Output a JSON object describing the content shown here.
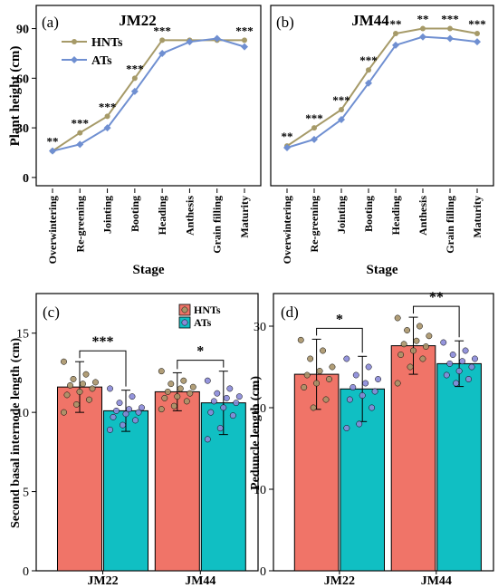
{
  "figure": {
    "colors": {
      "hnt": "#a69a68",
      "at": "#6f8fd1",
      "bar_hnt": "#f07468",
      "bar_at": "#10bfc3",
      "pt_hnt": "#a89469",
      "pt_at": "#8a8ad8"
    }
  },
  "chart_data": [
    {
      "type": "line",
      "panel": "(a)",
      "title": "JM22",
      "xlabel": "Stage",
      "ylabel": "Plant height (cm)",
      "ylim": [
        -5,
        104
      ],
      "yticks": [
        "0",
        "30",
        "60",
        "90"
      ],
      "categories": [
        "Overwintering",
        "Re-greening",
        "Jointing",
        "Booting",
        "Heading",
        "Anthesis",
        "Grain filling",
        "Maturity"
      ],
      "legend": {
        "position": "top-left",
        "entries": [
          "HNTs",
          "ATs"
        ]
      },
      "series": [
        {
          "name": "HNTs",
          "values": [
            16,
            27,
            37,
            60,
            83,
            83,
            83,
            83
          ],
          "color": "#a69a68"
        },
        {
          "name": "ATs",
          "values": [
            16,
            20,
            30,
            52,
            75,
            82,
            84,
            79
          ],
          "color": "#6f8fd1"
        }
      ],
      "significance": [
        "**",
        "***",
        "***",
        "***",
        "***",
        "",
        "",
        "***"
      ]
    },
    {
      "type": "line",
      "panel": "(b)",
      "title": "JM44",
      "xlabel": "Stage",
      "ylabel": "",
      "ylim": [
        -5,
        104
      ],
      "categories": [
        "Overwintering",
        "Re-greening",
        "Jointing",
        "Booting",
        "Heading",
        "Anthesis",
        "Grain filling",
        "Maturity"
      ],
      "series": [
        {
          "name": "HNTs",
          "values": [
            19,
            30,
            41,
            65,
            87,
            90,
            90,
            87
          ],
          "color": "#a69a68"
        },
        {
          "name": "ATs",
          "values": [
            18,
            23,
            35,
            57,
            80,
            85,
            84,
            82
          ],
          "color": "#6f8fd1"
        }
      ],
      "significance": [
        "**",
        "***",
        "***",
        "***",
        "**",
        "**",
        "***",
        "***"
      ]
    },
    {
      "type": "bar",
      "panel": "(c)",
      "xlabel": "",
      "ylabel": "Second basal internode length (cm)",
      "ylim": [
        0,
        17.5
      ],
      "yticks": [
        "0",
        "5",
        "10",
        "15"
      ],
      "categories": [
        "JM22",
        "JM44"
      ],
      "legend": {
        "position": "top-right",
        "entries": [
          "HNTs",
          "ATs"
        ]
      },
      "series": [
        {
          "name": "HNTs",
          "values": [
            11.6,
            11.3
          ],
          "errors": [
            1.6,
            1.2
          ],
          "color": "#f07468",
          "points": [
            [
              13.2,
              12.4,
              12.1,
              11.9,
              11.8,
              11.7,
              11.5,
              11.3,
              11.1,
              10.8,
              10.5,
              10.0
            ],
            [
              12.6,
              12.0,
              11.8,
              11.6,
              11.5,
              11.3,
              11.2,
              11.0,
              10.9,
              10.7,
              10.4,
              10.2
            ]
          ]
        },
        {
          "name": "ATs",
          "values": [
            10.1,
            10.6
          ],
          "errors": [
            1.3,
            2.0
          ],
          "color": "#10bfc3",
          "points": [
            [
              11.5,
              11.0,
              10.6,
              10.3,
              10.2,
              10.1,
              10.0,
              9.9,
              9.7,
              9.5,
              9.2,
              8.9
            ],
            [
              12.0,
              11.5,
              11.2,
              11.0,
              10.9,
              10.7,
              10.6,
              10.3,
              10.0,
              9.8,
              9.0,
              8.3
            ]
          ]
        }
      ],
      "significance": [
        "***",
        "*"
      ]
    },
    {
      "type": "bar",
      "panel": "(d)",
      "xlabel": "",
      "ylabel": "Peduncle length (cm)",
      "ylim": [
        0,
        34
      ],
      "yticks": [
        "0",
        "10",
        "20",
        "30"
      ],
      "categories": [
        "JM22",
        "JM44"
      ],
      "series": [
        {
          "name": "HNTs",
          "values": [
            24.1,
            27.6
          ],
          "errors": [
            4.3,
            3.5
          ],
          "color": "#f07468",
          "points": [
            [
              28.3,
              27.0,
              26.0,
              25.0,
              24.5,
              24.0,
              23.5,
              23.0,
              22.5,
              21.0,
              20.0
            ],
            [
              31.0,
              30.0,
              29.5,
              28.8,
              28.2,
              27.8,
              27.5,
              27.0,
              26.5,
              26.0,
              25.0,
              23.0
            ]
          ]
        },
        {
          "name": "ATs",
          "values": [
            22.3,
            25.4
          ],
          "errors": [
            4.0,
            2.8
          ],
          "color": "#10bfc3",
          "points": [
            [
              26.0,
              25.0,
              24.0,
              23.5,
              23.0,
              22.5,
              22.0,
              21.5,
              21.0,
              20.0,
              18.0,
              17.5
            ],
            [
              28.0,
              27.0,
              26.5,
              26.0,
              25.7,
              25.4,
              25.0,
              24.5,
              24.0,
              23.5,
              23.0
            ]
          ]
        }
      ],
      "significance": [
        "*",
        "**"
      ]
    }
  ]
}
